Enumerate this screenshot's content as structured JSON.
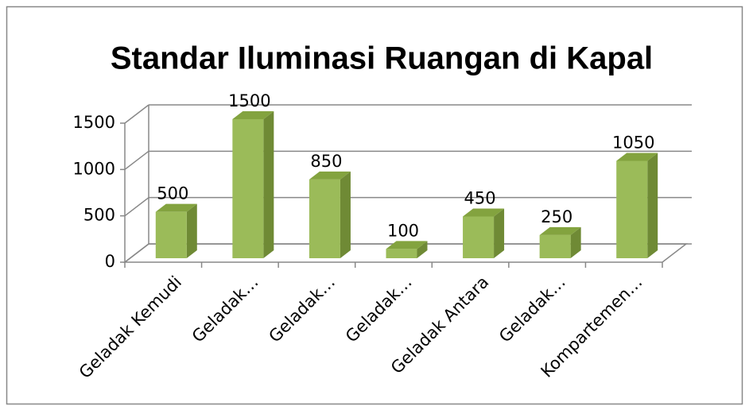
{
  "chart_data": {
    "type": "bar3d",
    "title": "Standar Iluminasi Ruangan di Kapal",
    "categories": [
      "Geladak Kemudi",
      "Geladak…",
      "Geladak…",
      "Geladak…",
      "Geladak Antara",
      "Geladak…",
      "Kompartemen…"
    ],
    "values": [
      500,
      1500,
      850,
      100,
      450,
      250,
      1050
    ],
    "color": "#9bbb59",
    "ylim": [
      0,
      1500
    ],
    "yticks": [
      0,
      500,
      1000,
      1500
    ],
    "grid": true
  }
}
